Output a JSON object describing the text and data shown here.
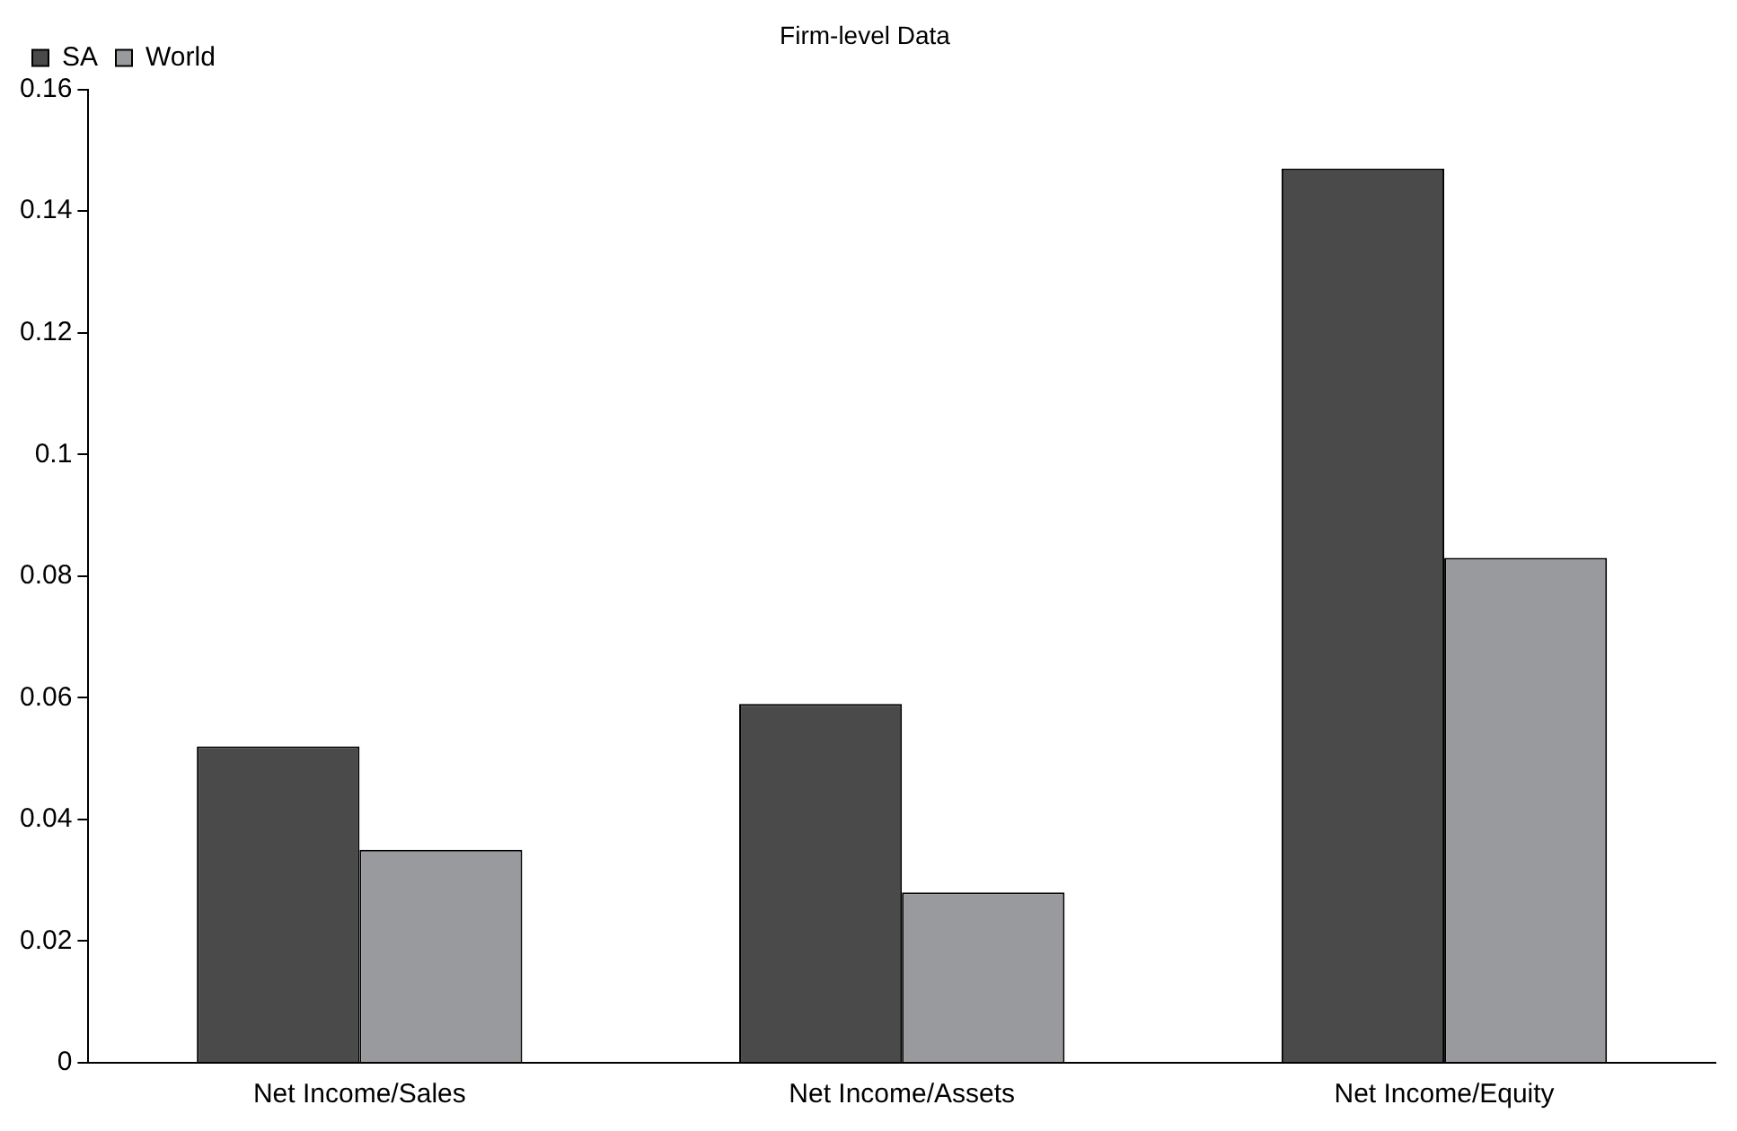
{
  "chart_data": {
    "type": "bar",
    "title": "Firm-level Data",
    "categories": [
      "Net Income/Sales",
      "Net Income/Assets",
      "Net Income/Equity"
    ],
    "series": [
      {
        "name": "SA",
        "color": "#4a4a4a",
        "values": [
          0.052,
          0.059,
          0.147
        ]
      },
      {
        "name": "World",
        "color": "#999a9e",
        "values": [
          0.035,
          0.028,
          0.083
        ]
      }
    ],
    "ylim": [
      0,
      0.16
    ],
    "yticks": [
      0,
      0.02,
      0.04,
      0.06,
      0.08,
      0.1,
      0.12,
      0.14,
      0.16
    ],
    "grid": false,
    "legend": "top left"
  }
}
